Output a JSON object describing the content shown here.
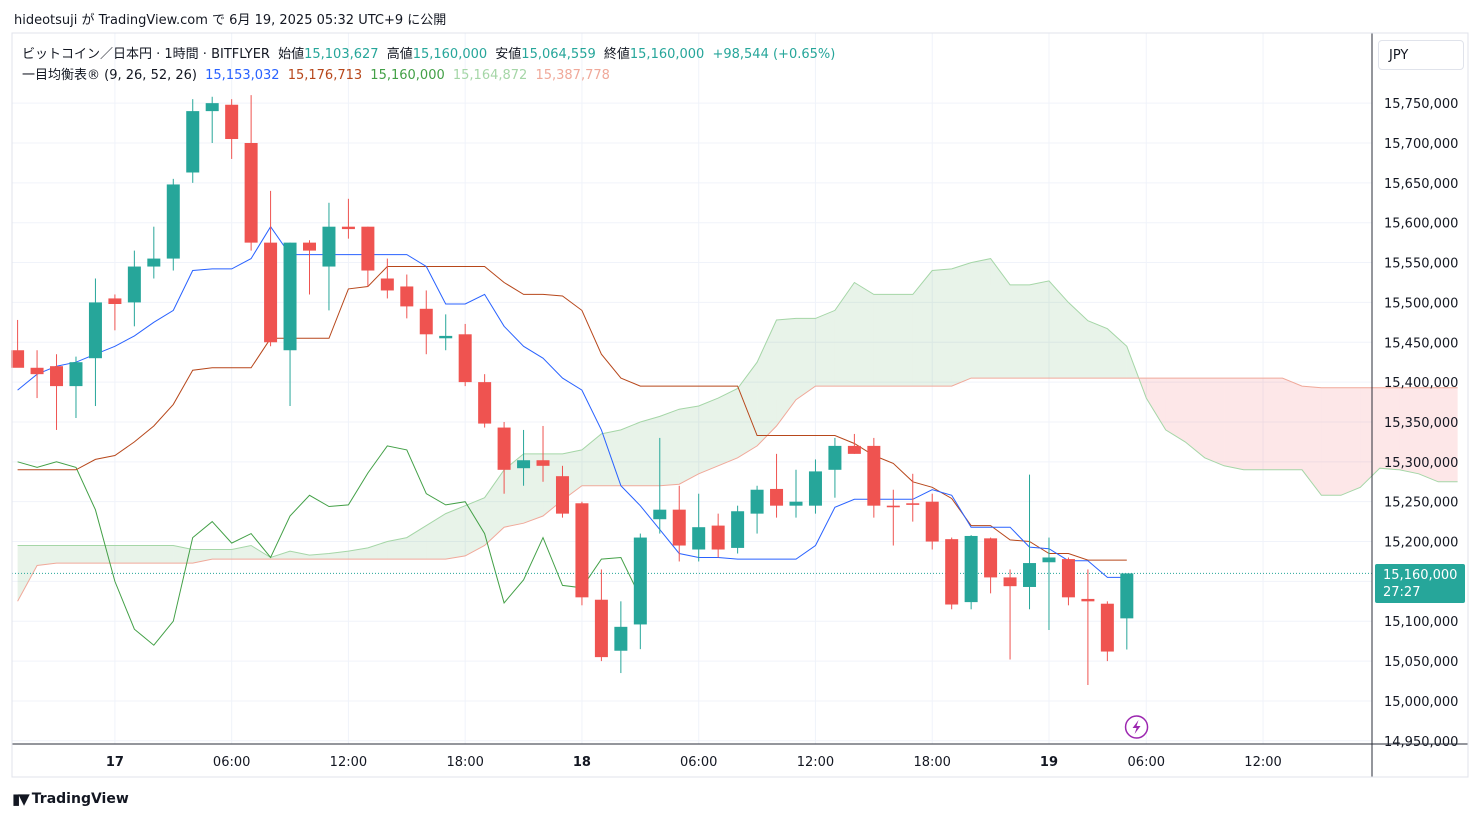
{
  "header": {
    "publish_line": "hideotsuji が TradingView.com で 6月 19, 2025 05:32 UTC+9 に公開"
  },
  "legend": {
    "symbol": "ビットコイン／日本円 · 1時間 · BITFLYER",
    "open_label": "始値",
    "open_value": "15,103,627",
    "high_label": "高値",
    "high_value": "15,160,000",
    "low_label": "安値",
    "low_value": "15,064,559",
    "close_label": "終値",
    "close_value": "15,160,000",
    "change": "+98,544 (+0.65%)",
    "ichimoku_label": "一目均衡表®",
    "ichimoku_params": "(9, 26, 52, 26)",
    "tenkan_value": "15,153,032",
    "kijun_value": "15,176,713",
    "chikou_value": "15,160,000",
    "span_a_value": "15,164,872",
    "span_b_value": "15,387,778"
  },
  "currency_button": "JPY",
  "last_price": {
    "price": "15,160,000",
    "countdown": "27:27"
  },
  "brand": "TradingView",
  "colors": {
    "up": "#26a69a",
    "down": "#ef5350",
    "tenkan": "#2962ff",
    "kijun": "#b7471b",
    "chikou": "#43a047",
    "span_a": "#a5d6a7",
    "span_b": "#f0a99a",
    "cloud_bull": "rgba(67,160,71,0.12)",
    "cloud_bear": "rgba(242,54,69,0.12)"
  },
  "chart_data": {
    "type": "candlestick",
    "y_axis": {
      "ticks": [
        15750000,
        15700000,
        15650000,
        15600000,
        15550000,
        15500000,
        15450000,
        15400000,
        15350000,
        15300000,
        15250000,
        15200000,
        15150000,
        15100000,
        15050000,
        15000000,
        14950000
      ],
      "tick_labels": [
        "15,750,000",
        "15,700,000",
        "15,650,000",
        "15,600,000",
        "15,550,000",
        "15,500,000",
        "15,450,000",
        "15,400,000",
        "15,350,000",
        "15,300,000",
        "15,250,000",
        "15,200,000",
        "15,150,000",
        "15,100,000",
        "15,050,000",
        "15,000,000",
        "14,950,000"
      ],
      "range": [
        14946000,
        15838000
      ]
    },
    "x_axis": {
      "labels": [
        {
          "bar": 5,
          "text": "17",
          "bold": true
        },
        {
          "bar": 11,
          "text": "06:00",
          "bold": false
        },
        {
          "bar": 17,
          "text": "12:00",
          "bold": false
        },
        {
          "bar": 23,
          "text": "18:00",
          "bold": false
        },
        {
          "bar": 29,
          "text": "18",
          "bold": true
        },
        {
          "bar": 35,
          "text": "06:00",
          "bold": false
        },
        {
          "bar": 41,
          "text": "12:00",
          "bold": false
        },
        {
          "bar": 47,
          "text": "18:00",
          "bold": false
        },
        {
          "bar": 53,
          "text": "19",
          "bold": true
        },
        {
          "bar": 58,
          "text": "06:00",
          "bold": false
        },
        {
          "bar": 64,
          "text": "12:00",
          "bold": false
        }
      ]
    },
    "candles": [
      [
        15440000,
        15478000,
        15420000,
        15418000
      ],
      [
        15418000,
        15440000,
        15380000,
        15410000
      ],
      [
        15420000,
        15435000,
        15340000,
        15395000
      ],
      [
        15395000,
        15432000,
        15355000,
        15425000
      ],
      [
        15430000,
        15530000,
        15370000,
        15500000
      ],
      [
        15505000,
        15510000,
        15465000,
        15498000
      ],
      [
        15500000,
        15565000,
        15470000,
        15545000
      ],
      [
        15545000,
        15595000,
        15530000,
        15555000
      ],
      [
        15555000,
        15655000,
        15540000,
        15648000
      ],
      [
        15663000,
        15755000,
        15650000,
        15740000
      ],
      [
        15740000,
        15758000,
        15700000,
        15750000
      ],
      [
        15748000,
        15755000,
        15680000,
        15705000
      ],
      [
        15700000,
        15760000,
        15565000,
        15575000
      ],
      [
        15575000,
        15640000,
        15445000,
        15450000
      ],
      [
        15440000,
        15575000,
        15370000,
        15575000
      ],
      [
        15575000,
        15578000,
        15510000,
        15565000
      ],
      [
        15545000,
        15625000,
        15490000,
        15595000
      ],
      [
        15595000,
        15630000,
        15580000,
        15592000
      ],
      [
        15595000,
        15595000,
        15520000,
        15540000
      ],
      [
        15530000,
        15555000,
        15505000,
        15515000
      ],
      [
        15520000,
        15535000,
        15480000,
        15495000
      ],
      [
        15492000,
        15515000,
        15435000,
        15460000
      ],
      [
        15455000,
        15485000,
        15440000,
        15458000
      ],
      [
        15460000,
        15473000,
        15395000,
        15400000
      ],
      [
        15400000,
        15410000,
        15343000,
        15348000
      ],
      [
        15343000,
        15350000,
        15260000,
        15290000
      ],
      [
        15292000,
        15340000,
        15270000,
        15302000
      ],
      [
        15302000,
        15345000,
        15275000,
        15295000
      ],
      [
        15282000,
        15295000,
        15230000,
        15235000
      ],
      [
        15248000,
        15250000,
        15120000,
        15130000
      ],
      [
        15127000,
        15165000,
        15050000,
        15055000
      ],
      [
        15063000,
        15125000,
        15035000,
        15093000
      ],
      [
        15096000,
        15210000,
        15065000,
        15205000
      ],
      [
        15228000,
        15330000,
        15210000,
        15240000
      ],
      [
        15240000,
        15270000,
        15175000,
        15195000
      ],
      [
        15190000,
        15260000,
        15175000,
        15218000
      ],
      [
        15220000,
        15235000,
        15180000,
        15190000
      ],
      [
        15192000,
        15245000,
        15185000,
        15238000
      ],
      [
        15235000,
        15270000,
        15210000,
        15265000
      ],
      [
        15266000,
        15310000,
        15230000,
        15245000
      ],
      [
        15245000,
        15290000,
        15230000,
        15250000
      ],
      [
        15245000,
        15303000,
        15235000,
        15288000
      ],
      [
        15290000,
        15330000,
        15255000,
        15320000
      ],
      [
        15320000,
        15335000,
        15310000,
        15310000
      ],
      [
        15320000,
        15330000,
        15230000,
        15245000
      ],
      [
        15245000,
        15265000,
        15195000,
        15243000
      ],
      [
        15248000,
        15285000,
        15225000,
        15246000
      ],
      [
        15250000,
        15260000,
        15190000,
        15200000
      ],
      [
        15203000,
        15205000,
        15115000,
        15121000
      ],
      [
        15124000,
        15208000,
        15115000,
        15207000
      ],
      [
        15204000,
        15205000,
        15135000,
        15155000
      ],
      [
        15155000,
        15165000,
        15052000,
        15144000
      ],
      [
        15143000,
        15284000,
        15115000,
        15173000
      ],
      [
        15174000,
        15205000,
        15089000,
        15180000
      ],
      [
        15178000,
        15180000,
        15120000,
        15130000
      ],
      [
        15128000,
        15165000,
        15020000,
        15125000
      ],
      [
        15122000,
        15125000,
        15050000,
        15062000
      ],
      [
        15103627,
        15160000,
        15064559,
        15160000
      ]
    ],
    "tenkan": [
      15390000,
      15410000,
      15420000,
      15425000,
      15435000,
      15445000,
      15458000,
      15475000,
      15490000,
      15540000,
      15542000,
      15542000,
      15555000,
      15595000,
      15560000,
      15560000,
      15560000,
      15560000,
      15560000,
      15560000,
      15560000,
      15545000,
      15498000,
      15498000,
      15510000,
      15470000,
      15445000,
      15430000,
      15405000,
      15390000,
      15340000,
      15270000,
      15245000,
      15215000,
      15185000,
      15180000,
      15180000,
      15178000,
      15178000,
      15178000,
      15178000,
      15195000,
      15243000,
      15253000,
      15253000,
      15253000,
      15253000,
      15265000,
      15258000,
      15218000,
      15218000,
      15218000,
      15193000,
      15191000,
      15176000,
      15176000,
      15155000,
      15155000
    ],
    "kijun": [
      15290000,
      15290000,
      15290000,
      15290000,
      15303000,
      15308000,
      15325000,
      15345000,
      15372000,
      15415000,
      15418000,
      15418000,
      15418000,
      15455000,
      15455000,
      15455000,
      15455000,
      15517000,
      15520000,
      15545000,
      15545000,
      15545000,
      15545000,
      15545000,
      15545000,
      15525000,
      15510000,
      15510000,
      15508000,
      15490000,
      15435000,
      15405000,
      15395000,
      15395000,
      15395000,
      15395000,
      15395000,
      15395000,
      15333000,
      15333000,
      15333000,
      15333000,
      15333000,
      15323000,
      15308000,
      15298000,
      15275000,
      15268000,
      15254000,
      15220000,
      15220000,
      15202000,
      15200000,
      15185000,
      15185000,
      15176713,
      15176713,
      15176713
    ],
    "chikou_offset_bars": 0,
    "chikou": [
      15300000,
      15293000,
      15300000,
      15293000,
      15240000,
      15150000,
      15090000,
      15070000,
      15100000,
      15205000,
      15225000,
      15198000,
      15210000,
      15180000,
      15232000,
      15258000,
      15244000,
      15246000,
      15286000,
      15320000,
      15315000,
      15260000,
      15246000,
      15250000,
      15210000,
      15123000,
      15152000,
      15205000,
      15145000,
      15142000,
      15178000,
      15180000,
      15130000
    ],
    "span_a": [
      15195000,
      15195000,
      15195000,
      15195000,
      15195000,
      15195000,
      15195000,
      15195000,
      15195000,
      15190000,
      15190000,
      15190000,
      15195000,
      15180000,
      15188000,
      15183000,
      15185000,
      15188000,
      15192000,
      15200000,
      15205000,
      15220000,
      15235000,
      15245000,
      15255000,
      15290000,
      15310000,
      15310000,
      15310000,
      15315000,
      15335000,
      15340000,
      15350000,
      15357000,
      15366000,
      15370000,
      15380000,
      15392000,
      15425000,
      15478000,
      15480000,
      15480000,
      15490000,
      15525000,
      15510000,
      15510000,
      15510000,
      15540000,
      15542000,
      15550000,
      15555000,
      15522000,
      15522000,
      15527000,
      15500000,
      15477000,
      15467000,
      15445000,
      15380000,
      15340000,
      15325000,
      15305000,
      15295000,
      15290000,
      15290000,
      15290000,
      15290000,
      15258000,
      15258000,
      15268000,
      15292000,
      15290000,
      15285000,
      15275000,
      15275000
    ],
    "span_b": [
      15125000,
      15170000,
      15173000,
      15173000,
      15173000,
      15173000,
      15173000,
      15173000,
      15173000,
      15173000,
      15178000,
      15178000,
      15178000,
      15178000,
      15178000,
      15178000,
      15178000,
      15178000,
      15178000,
      15178000,
      15178000,
      15178000,
      15178000,
      15182000,
      15195000,
      15218000,
      15223000,
      15232000,
      15252000,
      15270000,
      15270000,
      15270000,
      15270000,
      15270000,
      15272000,
      15285000,
      15295000,
      15305000,
      15320000,
      15345000,
      15378000,
      15395000,
      15395000,
      15395000,
      15395000,
      15395000,
      15395000,
      15395000,
      15395000,
      15405000,
      15405000,
      15405000,
      15405000,
      15405000,
      15405000,
      15405000,
      15405000,
      15405000,
      15405000,
      15405000,
      15405000,
      15405000,
      15405000,
      15405000,
      15405000,
      15405000,
      15395000,
      15393000,
      15393000,
      15393000,
      15393000,
      15393000,
      15393000,
      15393000,
      15393000
    ]
  }
}
